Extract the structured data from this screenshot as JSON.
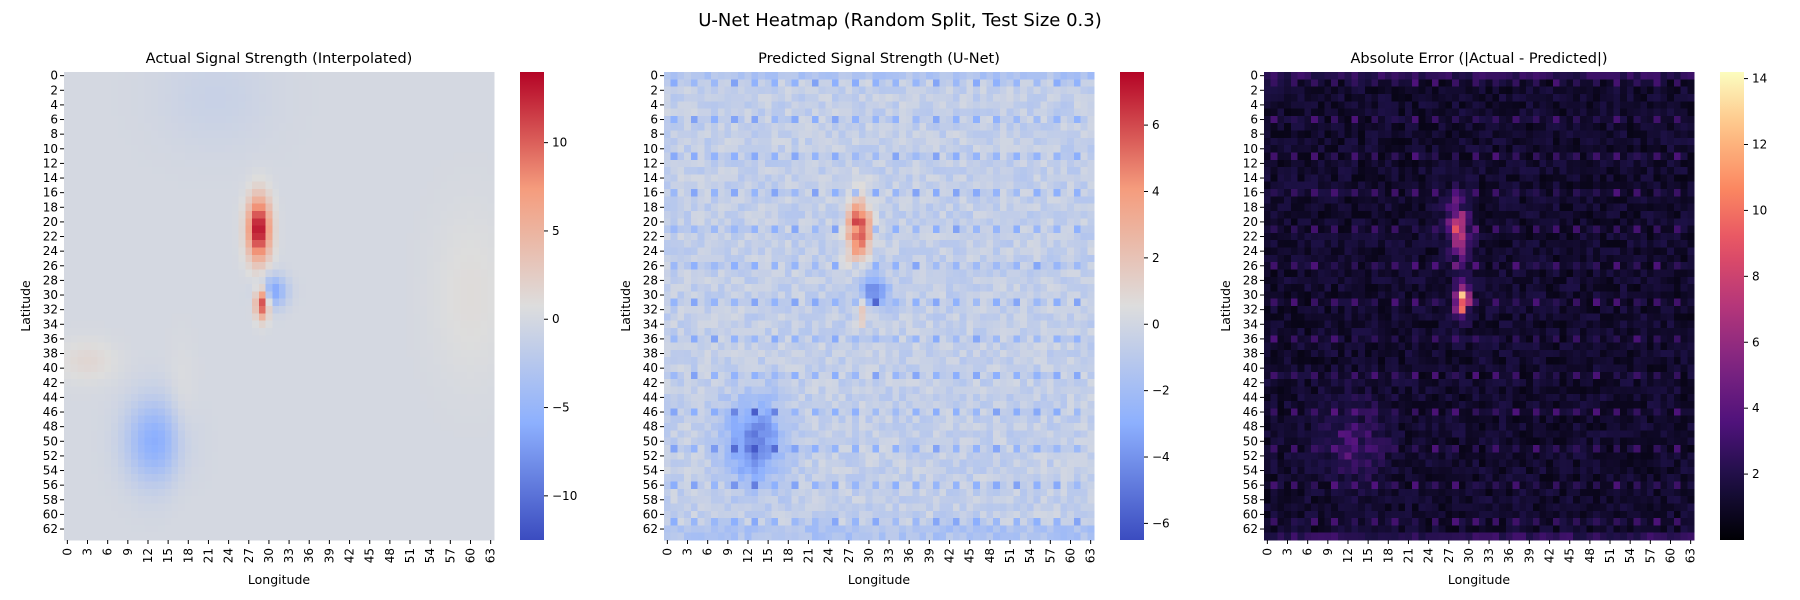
{
  "figure": {
    "suptitle": "U-Net Heatmap (Random Split, Test Size 0.3)"
  },
  "chart_data": [
    {
      "type": "heatmap",
      "title": "Actual Signal Strength (Interpolated)",
      "xlabel": "Longitude",
      "ylabel": "Latitude",
      "grid_size": 64,
      "xticks": [
        0,
        3,
        6,
        9,
        12,
        15,
        18,
        21,
        24,
        27,
        30,
        33,
        36,
        39,
        42,
        45,
        48,
        51,
        54,
        57,
        60,
        63
      ],
      "yticks": [
        0,
        2,
        4,
        6,
        8,
        10,
        12,
        14,
        16,
        18,
        20,
        22,
        24,
        26,
        28,
        30,
        32,
        34,
        36,
        38,
        40,
        42,
        44,
        46,
        48,
        50,
        52,
        54,
        56,
        58,
        60,
        62
      ],
      "colormap": "coolwarm",
      "vmin": -12.5,
      "vmax": 14,
      "colorbar_ticks": [
        -10,
        -5,
        0,
        5,
        10
      ],
      "background_value": 0,
      "features": [
        {
          "kind": "positive_peak",
          "center_x": 28.5,
          "center_y": 21,
          "sigma_x": 1.2,
          "sigma_y": 3,
          "value": 14
        },
        {
          "kind": "positive_peak",
          "center_x": 29,
          "center_y": 31,
          "sigma_x": 0.7,
          "sigma_y": 1.5,
          "value": 13
        },
        {
          "kind": "negative_blob",
          "center_x": 30.5,
          "center_y": 29.5,
          "sigma_x": 1.5,
          "sigma_y": 1.5,
          "value": -7
        },
        {
          "kind": "negative_blob",
          "center_x": 13,
          "center_y": 50,
          "sigma_x": 3,
          "sigma_y": 4,
          "value": -6
        },
        {
          "kind": "negative_blob",
          "center_x": 22,
          "center_y": 3,
          "sigma_x": 6,
          "sigma_y": 5,
          "value": -1
        },
        {
          "kind": "positive_blob",
          "center_x": 3,
          "center_y": 39,
          "sigma_x": 3,
          "sigma_y": 2,
          "value": 1.5
        },
        {
          "kind": "positive_blob",
          "center_x": 60,
          "center_y": 30,
          "sigma_x": 4,
          "sigma_y": 8,
          "value": 1
        },
        {
          "kind": "positive_blob",
          "center_x": 17,
          "center_y": 47,
          "sigma_x": 1.5,
          "sigma_y": 6,
          "value": 1
        }
      ]
    },
    {
      "type": "heatmap",
      "title": "Predicted Signal Strength (U-Net)",
      "xlabel": "Longitude",
      "ylabel": "Latitude",
      "grid_size": 64,
      "xticks": [
        0,
        3,
        6,
        9,
        12,
        15,
        18,
        21,
        24,
        27,
        30,
        33,
        36,
        39,
        42,
        45,
        48,
        51,
        54,
        57,
        60,
        63
      ],
      "yticks": [
        0,
        2,
        4,
        6,
        8,
        10,
        12,
        14,
        16,
        18,
        20,
        22,
        24,
        26,
        28,
        30,
        32,
        34,
        36,
        38,
        40,
        42,
        44,
        46,
        48,
        50,
        52,
        54,
        56,
        58,
        60,
        62
      ],
      "colormap": "coolwarm",
      "vmin": -6.5,
      "vmax": 7.6,
      "colorbar_ticks": [
        -6,
        -4,
        -2,
        0,
        2,
        4,
        6
      ],
      "background_value": -0.6,
      "features": [
        {
          "kind": "positive_peak",
          "center_x": 28.5,
          "center_y": 21,
          "sigma_x": 1.2,
          "sigma_y": 3,
          "value": 7
        },
        {
          "kind": "positive_peak",
          "center_x": 29,
          "center_y": 32,
          "sigma_x": 0.7,
          "sigma_y": 1.5,
          "value": 3
        },
        {
          "kind": "negative_blob",
          "center_x": 30.5,
          "center_y": 29.5,
          "sigma_x": 1.5,
          "sigma_y": 1.5,
          "value": -4
        },
        {
          "kind": "negative_blob",
          "center_x": 13,
          "center_y": 50,
          "sigma_x": 3,
          "sigma_y": 4,
          "value": -4
        }
      ]
    },
    {
      "type": "heatmap",
      "title": "Absolute Error (|Actual - Predicted|)",
      "xlabel": "Longitude",
      "ylabel": "Latitude",
      "grid_size": 64,
      "xticks": [
        0,
        3,
        6,
        9,
        12,
        15,
        18,
        21,
        24,
        27,
        30,
        33,
        36,
        39,
        42,
        45,
        48,
        51,
        54,
        57,
        60,
        63
      ],
      "yticks": [
        0,
        2,
        4,
        6,
        8,
        10,
        12,
        14,
        16,
        18,
        20,
        22,
        24,
        26,
        28,
        30,
        32,
        34,
        36,
        38,
        40,
        42,
        44,
        46,
        48,
        50,
        52,
        54,
        56,
        58,
        60,
        62
      ],
      "colormap": "magma",
      "vmin": 0,
      "vmax": 14.2,
      "colorbar_ticks": [
        2,
        4,
        6,
        8,
        10,
        12,
        14
      ],
      "background_value": 0.5,
      "features": [
        {
          "kind": "peak",
          "center_x": 28.5,
          "center_y": 21,
          "sigma_x": 1.2,
          "sigma_y": 3,
          "value": 7
        },
        {
          "kind": "peak",
          "center_x": 29,
          "center_y": 31,
          "sigma_x": 0.7,
          "sigma_y": 1.5,
          "value": 14
        },
        {
          "kind": "peak",
          "center_x": 13,
          "center_y": 50,
          "sigma_x": 3,
          "sigma_y": 4,
          "value": 2.5
        }
      ]
    }
  ]
}
